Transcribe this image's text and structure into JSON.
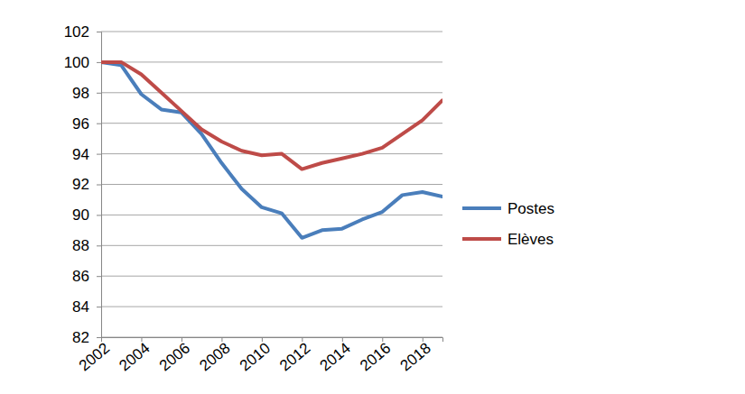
{
  "chart_data": {
    "type": "line",
    "x": [
      2002,
      2003,
      2004,
      2005,
      2006,
      2007,
      2008,
      2009,
      2010,
      2011,
      2012,
      2013,
      2014,
      2015,
      2016,
      2017,
      2018,
      2019
    ],
    "series": [
      {
        "name": "Postes",
        "color": "#4a7ebb",
        "values": [
          100,
          99.8,
          97.9,
          96.9,
          96.7,
          95.3,
          93.4,
          91.7,
          90.5,
          90.1,
          88.5,
          89.0,
          89.1,
          89.7,
          90.2,
          91.3,
          91.5,
          91.2
        ]
      },
      {
        "name": "Elèves",
        "color": "#be4b48",
        "values": [
          100,
          100,
          99.2,
          98.0,
          96.8,
          95.6,
          94.8,
          94.2,
          93.9,
          94.0,
          93.0,
          93.4,
          93.7,
          94.0,
          94.4,
          95.3,
          96.2,
          97.5
        ]
      }
    ],
    "xlim": [
      2002,
      2019
    ],
    "xticks": [
      2002,
      2004,
      2006,
      2008,
      2010,
      2012,
      2014,
      2016,
      2018
    ],
    "ylim": [
      82,
      102
    ],
    "yticks": [
      82,
      84,
      86,
      88,
      90,
      92,
      94,
      96,
      98,
      100,
      102
    ],
    "grid": true,
    "legend": "right"
  }
}
